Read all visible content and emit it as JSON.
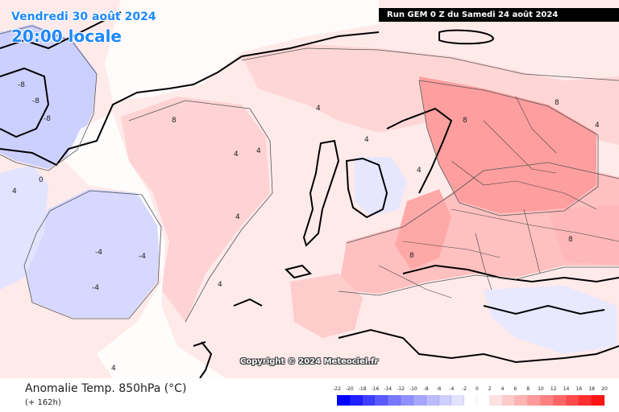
{
  "header": {
    "date_label": "Vendredi 30 août 2024",
    "time_label": "20:00 locale",
    "run_label": "Run GEM 0 Z du Samedi 24 août 2024"
  },
  "copyright": "Copyright © 2024 Meteociel.fr",
  "footer": {
    "title": "Anomalie Temp. 850hPa (°C)",
    "subtitle": "(+ 162h)"
  },
  "legend": {
    "labels": [
      "-22",
      "-20",
      "-18",
      "-16",
      "-14",
      "-12",
      "-10",
      "-8",
      "-6",
      "-4",
      "-2",
      "0",
      "2",
      "4",
      "6",
      "8",
      "10",
      "12",
      "14",
      "16",
      "18",
      "20"
    ],
    "colors": [
      "#0000ff",
      "#1f1fff",
      "#3d3dff",
      "#5a5aff",
      "#7777ff",
      "#8f8fff",
      "#a6a6ff",
      "#bbbbff",
      "#cfcfff",
      "#e2e2ff",
      "#ffffff",
      "#ffffff",
      "#ffe1e1",
      "#ffcaca",
      "#ffb3b3",
      "#ff9a9a",
      "#ff8080",
      "#ff6565",
      "#ff4a4a",
      "#ff2e2e",
      "#ff1414"
    ]
  },
  "map": {
    "contour_labels": [
      "-8",
      "-8",
      "-8",
      "0",
      "4",
      "8",
      "4",
      "4",
      "8",
      "4",
      "4",
      "-4",
      "-4",
      "-4",
      "4",
      "4",
      "8",
      "8",
      "8",
      "4",
      "4",
      "4"
    ]
  },
  "colors": {
    "cold_anomaly": "#cfd3ff",
    "warm_anomaly": "#ffd3d3",
    "strong_warm": "#ff9e9e",
    "title_blue": "#1e88ff"
  }
}
